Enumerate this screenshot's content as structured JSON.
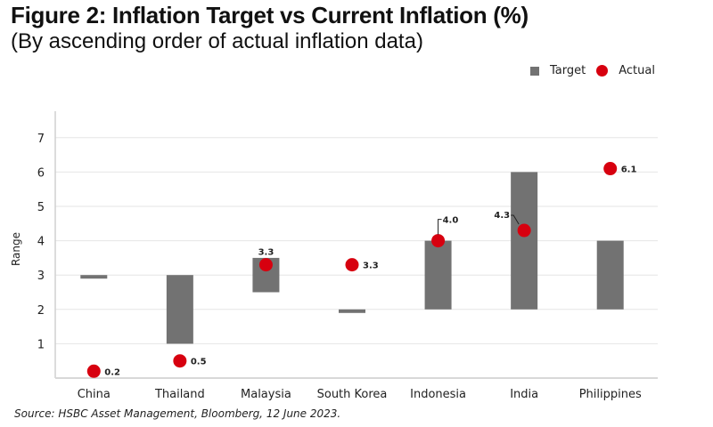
{
  "chart_data": {
    "type": "bar",
    "title": "Figure 2: Inflation Target vs Current Inflation (%)",
    "subtitle": "(By ascending order of actual inflation data)",
    "xlabel": "",
    "ylabel": "Range",
    "ylim": [
      0,
      7.8
    ],
    "yticks": [
      "1",
      "2",
      "3",
      "4",
      "5",
      "6",
      "7"
    ],
    "grid": true,
    "legend": {
      "placement": "top-right",
      "entries": [
        {
          "name": "Target",
          "marker": "square",
          "color": "#727272"
        },
        {
          "name": "Actual",
          "marker": "circle",
          "color": "#d7000f"
        }
      ]
    },
    "categories": [
      "China",
      "Thailand",
      "Malaysia",
      "South Korea",
      "Indonesia",
      "India",
      "Philippines"
    ],
    "series": [
      {
        "name": "Target",
        "kind": "range-bar",
        "color": "#727272",
        "ranges": [
          [
            2.9,
            3.0
          ],
          [
            1.0,
            3.0
          ],
          [
            2.5,
            3.5
          ],
          [
            1.9,
            2.0
          ],
          [
            2.0,
            4.0
          ],
          [
            2.0,
            6.0
          ],
          [
            2.0,
            4.0
          ]
        ]
      },
      {
        "name": "Actual",
        "kind": "point",
        "color": "#d7000f",
        "values": [
          0.2,
          0.5,
          3.3,
          3.3,
          4.0,
          4.3,
          6.1
        ],
        "labels": [
          "0.2",
          "0.5",
          "3.3",
          "3.3",
          "4.0",
          "4.3",
          "6.1"
        ]
      }
    ]
  },
  "source": "Source: HSBC Asset Management, Bloomberg, 12 June 2023."
}
